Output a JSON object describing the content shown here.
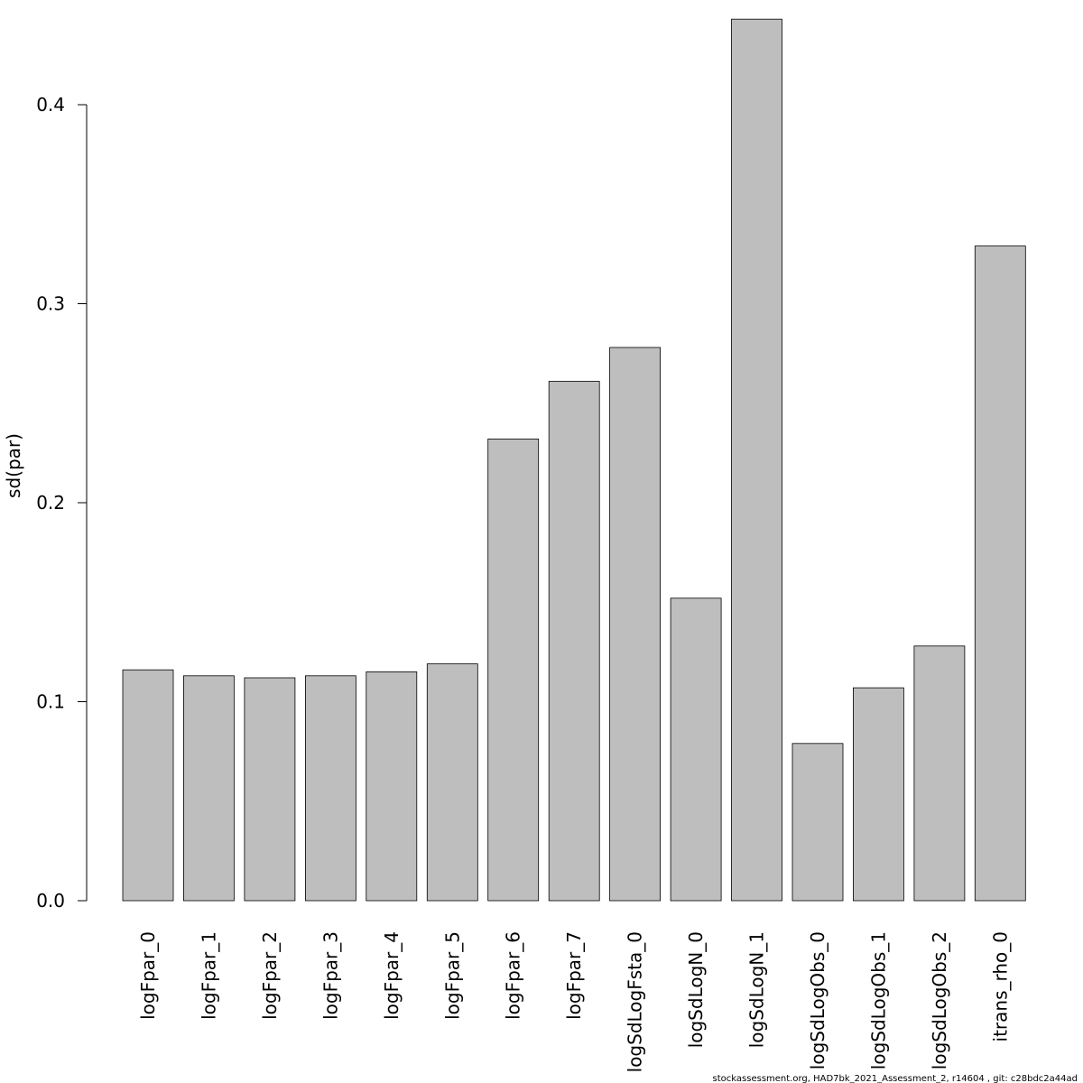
{
  "chart_data": {
    "type": "bar",
    "categories": [
      "logFpar_0",
      "logFpar_1",
      "logFpar_2",
      "logFpar_3",
      "logFpar_4",
      "logFpar_5",
      "logFpar_6",
      "logFpar_7",
      "logSdLogFsta_0",
      "logSdLogN_0",
      "logSdLogN_1",
      "logSdLogObs_0",
      "logSdLogObs_1",
      "logSdLogObs_2",
      "itrans_rho_0"
    ],
    "values": [
      0.116,
      0.113,
      0.112,
      0.113,
      0.115,
      0.119,
      0.232,
      0.261,
      0.278,
      0.152,
      0.443,
      0.079,
      0.107,
      0.128,
      0.329
    ],
    "title": "",
    "xlabel": "",
    "ylabel": "sd(par)",
    "yticks": [
      "0.0",
      "0.1",
      "0.2",
      "0.3",
      "0.4"
    ],
    "ylim": [
      0,
      0.45
    ],
    "grid": false,
    "bar_color": "#bebebe",
    "bar_stroke": "#000000"
  },
  "footer": "stockassessment.org, HAD7bk_2021_Assessment_2, r14604 , git: c28bdc2a44ad"
}
